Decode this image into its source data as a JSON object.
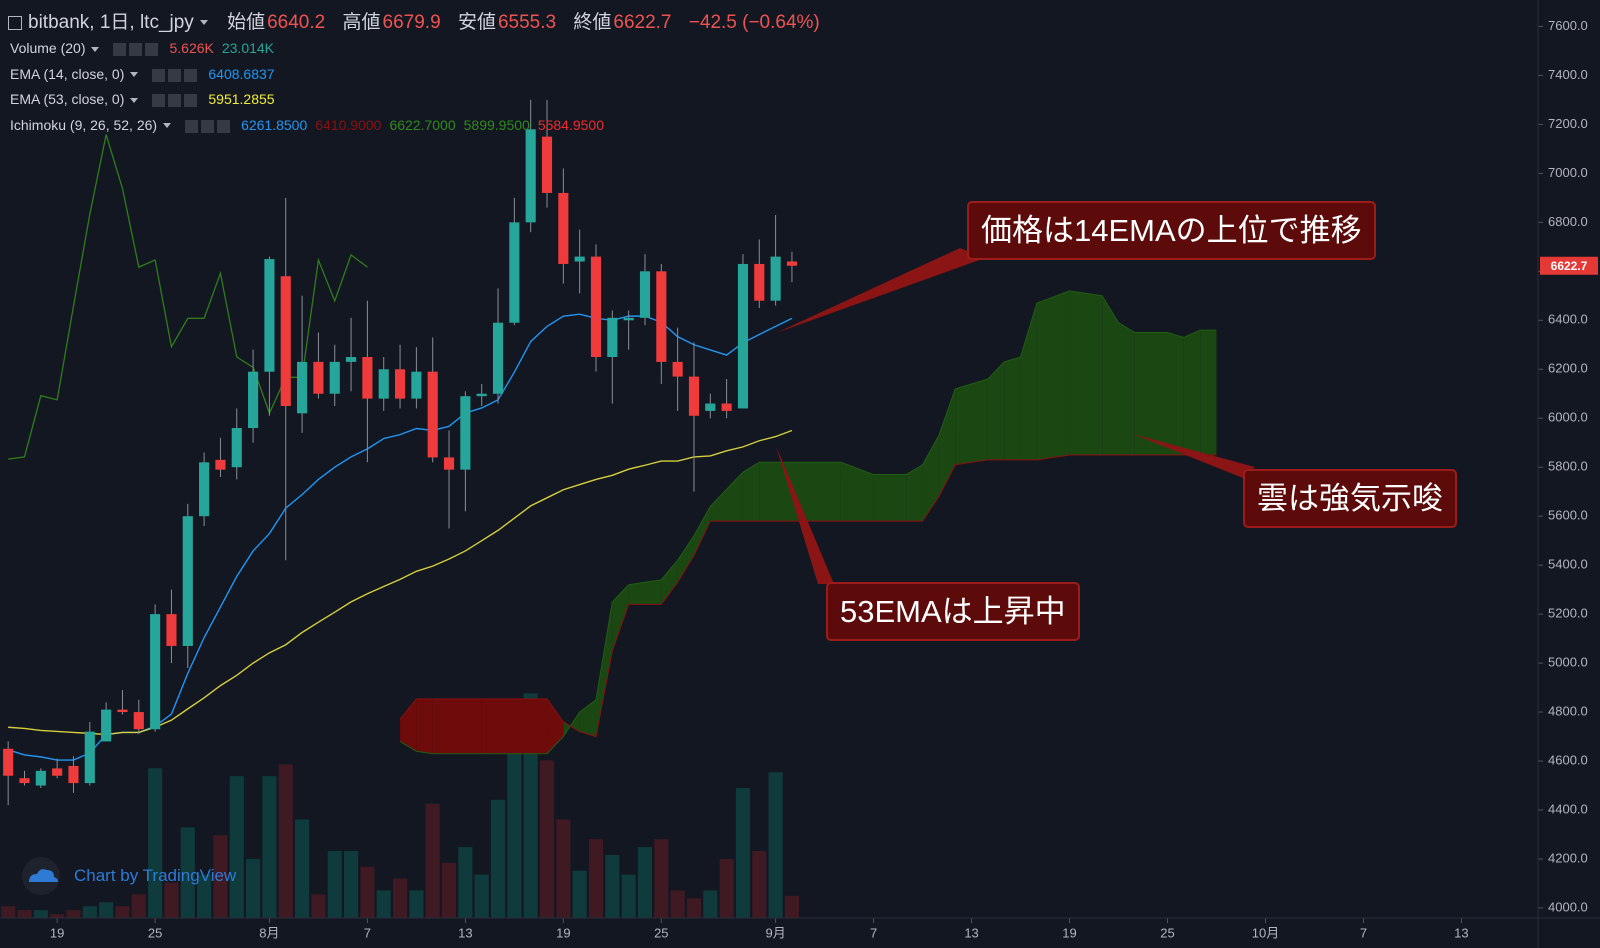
{
  "chart_data": {
    "type": "candlestick",
    "title": "bitbank, 1日, ltc_jpy",
    "ohlc_labels": [
      "始値",
      "高値",
      "安値",
      "終値"
    ],
    "change": "−42.5 (−0.64%)",
    "x": [
      197,
      198,
      199,
      200,
      201,
      202,
      203,
      204,
      205,
      206,
      207,
      208,
      209,
      210,
      211,
      212,
      213,
      214,
      215,
      216,
      217,
      218,
      219,
      220,
      221,
      222,
      223,
      224,
      225,
      226,
      227,
      228,
      229,
      230,
      231,
      232,
      233,
      234,
      235,
      236,
      237,
      238,
      239,
      240,
      241,
      242,
      243,
      244,
      245
    ],
    "open": [
      4650,
      4530,
      4500,
      4570,
      4580,
      4510,
      4680,
      4810,
      4800,
      4730,
      5200,
      5070,
      5600,
      5830,
      5800,
      5960,
      6190,
      6580,
      6020,
      6230,
      6100,
      6230,
      6250,
      6080,
      6200,
      6080,
      6190,
      5840,
      5790,
      6090,
      6100,
      6390,
      6800,
      7150,
      6920,
      6640,
      6660,
      6250,
      6400,
      6410,
      6600,
      6230,
      6170,
      6030,
      6060,
      6040,
      6630,
      6480,
      6640.2
    ],
    "high": [
      4680,
      4560,
      4570,
      4610,
      4620,
      4760,
      4840,
      4890,
      4850,
      5240,
      5300,
      5650,
      5860,
      5920,
      6040,
      6280,
      6660,
      6900,
      6500,
      6350,
      6300,
      6410,
      6480,
      6250,
      6300,
      6290,
      6330,
      5950,
      6110,
      6140,
      6530,
      6900,
      7300,
      7300,
      7020,
      6770,
      6710,
      6440,
      6440,
      6670,
      6630,
      6370,
      6310,
      6100,
      6160,
      6670,
      6730,
      6830,
      6679.9
    ],
    "low": [
      4420,
      4500,
      4490,
      4530,
      4470,
      4500,
      4680,
      4790,
      4710,
      4720,
      5000,
      4980,
      5560,
      5760,
      5750,
      5900,
      6010,
      5420,
      5940,
      6080,
      6050,
      6110,
      5820,
      6030,
      6040,
      6040,
      5820,
      5550,
      5620,
      6050,
      6060,
      6380,
      6760,
      6860,
      6550,
      6510,
      6190,
      6060,
      6280,
      6380,
      6140,
      6030,
      5700,
      6000,
      6000,
      6040,
      6450,
      6460,
      6555.3
    ],
    "close": [
      4540,
      4510,
      4560,
      4540,
      4510,
      4720,
      4810,
      4800,
      4730,
      5200,
      5070,
      5600,
      5820,
      5790,
      5960,
      6190,
      6650,
      6050,
      6230,
      6100,
      6230,
      6250,
      6080,
      6200,
      6080,
      6190,
      5840,
      5790,
      6090,
      6100,
      6390,
      6800,
      7180,
      6920,
      6630,
      6660,
      6250,
      6410,
      6410,
      6600,
      6230,
      6170,
      6010,
      6060,
      6030,
      6630,
      6480,
      6660,
      6622.7
    ],
    "volume": [
      3,
      2,
      2,
      1,
      2,
      3,
      4,
      3,
      6,
      38,
      9,
      23,
      11,
      21,
      36,
      15,
      36,
      39,
      25,
      6,
      17,
      17,
      13,
      7,
      10,
      7,
      29,
      14,
      18,
      11,
      30,
      46,
      57,
      40,
      25,
      12,
      20,
      16,
      11,
      18,
      20,
      7,
      5,
      7,
      15,
      33,
      17,
      37,
      5.626
    ],
    "up_color": "#26a69a",
    "down_color": "#ef3b3b",
    "volume_up_color": "#0f3b3c",
    "volume_down_color": "#3f1a22",
    "indicators": [
      {
        "name": "EMA (14, close, 0)",
        "color": "#2196f3",
        "values": [
          4646,
          4625,
          4617,
          4604,
          4604,
          4633,
          4708,
          4717,
          4717,
          4742,
          4792,
          4958,
          5104,
          5229,
          5354,
          5458,
          5529,
          5633,
          5688,
          5750,
          5800,
          5842,
          5875,
          5917,
          5933,
          5958,
          5950,
          5967,
          6021,
          6042,
          6075,
          6188,
          6313,
          6375,
          6417,
          6425,
          6408,
          6400,
          6417,
          6417,
          6392,
          6333,
          6300,
          6279,
          6258,
          6308,
          6342,
          6375,
          6408
        ]
      },
      {
        "name": "EMA (53, close, 0)",
        "color": "#d4cf3c",
        "values": [
          4738,
          4733,
          4725,
          4721,
          4717,
          4713,
          4708,
          4717,
          4717,
          4738,
          4767,
          4813,
          4858,
          4908,
          4950,
          5000,
          5042,
          5075,
          5125,
          5167,
          5208,
          5250,
          5283,
          5313,
          5342,
          5375,
          5396,
          5425,
          5458,
          5500,
          5542,
          5592,
          5642,
          5675,
          5708,
          5729,
          5750,
          5767,
          5792,
          5808,
          5825,
          5825,
          5842,
          5846,
          5867,
          5883,
          5908,
          5925,
          5950
        ]
      }
    ],
    "ichimoku": {
      "lagging_x": [
        197,
        198,
        199,
        200,
        201,
        202,
        203,
        204,
        205,
        206,
        207,
        208,
        209,
        210,
        211,
        212,
        213,
        214,
        215,
        216,
        217,
        218,
        219
      ],
      "lagging": [
        5833,
        5842,
        6092,
        6075,
        6458,
        6833,
        7158,
        6938,
        6617,
        6646,
        6292,
        6408,
        6408,
        6592,
        6250,
        6208,
        6021,
        6167,
        6167,
        6646,
        6479,
        6667,
        6617
      ],
      "lagging_color": "#2f7d1a",
      "cloud_x": [
        221,
        222,
        223,
        226,
        230,
        231,
        232,
        233,
        234,
        235,
        237,
        238,
        239,
        240,
        242,
        243,
        248,
        250,
        252,
        253,
        254,
        255,
        257,
        258,
        259,
        260,
        262,
        264,
        265,
        266,
        268,
        269,
        270,
        271
      ],
      "span_a": [
        4680,
        4640,
        4630,
        4630,
        4630,
        4700,
        4800,
        4850,
        5250,
        5320,
        5340,
        5420,
        5520,
        5640,
        5780,
        5820,
        5820,
        5770,
        5770,
        5810,
        5930,
        6120,
        6160,
        6230,
        6250,
        6470,
        6520,
        6500,
        6390,
        6350,
        6350,
        6330,
        6360,
        6360
      ],
      "span_b": [
        4770,
        4854,
        4854,
        4854,
        4854,
        4760,
        4720,
        4700,
        5050,
        5240,
        5240,
        5330,
        5440,
        5580,
        5580,
        5580,
        5580,
        5580,
        5580,
        5580,
        5680,
        5810,
        5830,
        5830,
        5830,
        5830,
        5850,
        5850,
        5850,
        5850,
        5850,
        5850,
        5850,
        5850
      ],
      "span_a_color": "#1f5e14",
      "span_b_color": "#8a1010",
      "cloud_up_color": "#1b4712",
      "cloud_down_color": "#6e0b0b"
    },
    "legend": [
      {
        "label": "Volume (20)",
        "values": [
          {
            "text": "5.626K",
            "color": "#ef5350"
          },
          {
            "text": "23.014K",
            "color": "#26a69a"
          }
        ]
      },
      {
        "label": "EMA (14, close, 0)",
        "values": [
          {
            "text": "6408.6837",
            "color": "#2196f3"
          }
        ]
      },
      {
        "label": "EMA (53, close, 0)",
        "values": [
          {
            "text": "5951.2855",
            "color": "#f0ec3a"
          }
        ]
      },
      {
        "label": "Ichimoku (9, 26, 52, 26)",
        "values": [
          {
            "text": "6261.8500",
            "color": "#2196f3"
          },
          {
            "text": "6410.9000",
            "color": "#8a1010"
          },
          {
            "text": "6622.7000",
            "color": "#2f8a1a"
          },
          {
            "text": "5899.9500",
            "color": "#2f8a1a"
          },
          {
            "text": "5584.9500",
            "color": "#ef2b2b"
          }
        ]
      }
    ],
    "annotations": [
      "価格は14EMAの上位で推移",
      "雲は強気示唆",
      "53EMAは上昇中"
    ],
    "watermark": "Chart by TradingView",
    "xlim": [
      196.5,
      290.69
    ],
    "xticks": [
      {
        "value": 200,
        "label": "19"
      },
      {
        "value": 206,
        "label": "25"
      },
      {
        "value": 213,
        "label": "8月"
      },
      {
        "value": 219,
        "label": "7"
      },
      {
        "value": 225,
        "label": "13"
      },
      {
        "value": 231,
        "label": "19"
      },
      {
        "value": 237,
        "label": "25"
      },
      {
        "value": 244,
        "label": "9月"
      },
      {
        "value": 250,
        "label": "7"
      },
      {
        "value": 256,
        "label": "13"
      },
      {
        "value": 262,
        "label": "19"
      },
      {
        "value": 268,
        "label": "25"
      },
      {
        "value": 274,
        "label": "10月"
      },
      {
        "value": 280,
        "label": "7"
      },
      {
        "value": 286,
        "label": "13"
      }
    ],
    "ylim": [
      3959,
      7708
    ],
    "yticks": [
      {
        "value": 4000,
        "label": "4000.0"
      },
      {
        "value": 4200,
        "label": "4200.0"
      },
      {
        "value": 4400,
        "label": "4400.0"
      },
      {
        "value": 4600,
        "label": "4600.0"
      },
      {
        "value": 4800,
        "label": "4800.0"
      },
      {
        "value": 5000,
        "label": "5000.0"
      },
      {
        "value": 5200,
        "label": "5200.0"
      },
      {
        "value": 5400,
        "label": "5400.0"
      },
      {
        "value": 5600,
        "label": "5600.0"
      },
      {
        "value": 5800,
        "label": "5800.0"
      },
      {
        "value": 6000,
        "label": "6000.0"
      },
      {
        "value": 6200,
        "label": "6200.0"
      },
      {
        "value": 6400,
        "label": "6400.0"
      },
      {
        "value": 6600,
        "label": "6600.0"
      },
      {
        "value": 6800,
        "label": "6800.0"
      },
      {
        "value": 7000,
        "label": "7000.0"
      },
      {
        "value": 7200,
        "label": "7200.0"
      },
      {
        "value": 7400,
        "label": "7400.0"
      },
      {
        "value": 7600,
        "label": "7600.0"
      }
    ],
    "grid": false
  }
}
